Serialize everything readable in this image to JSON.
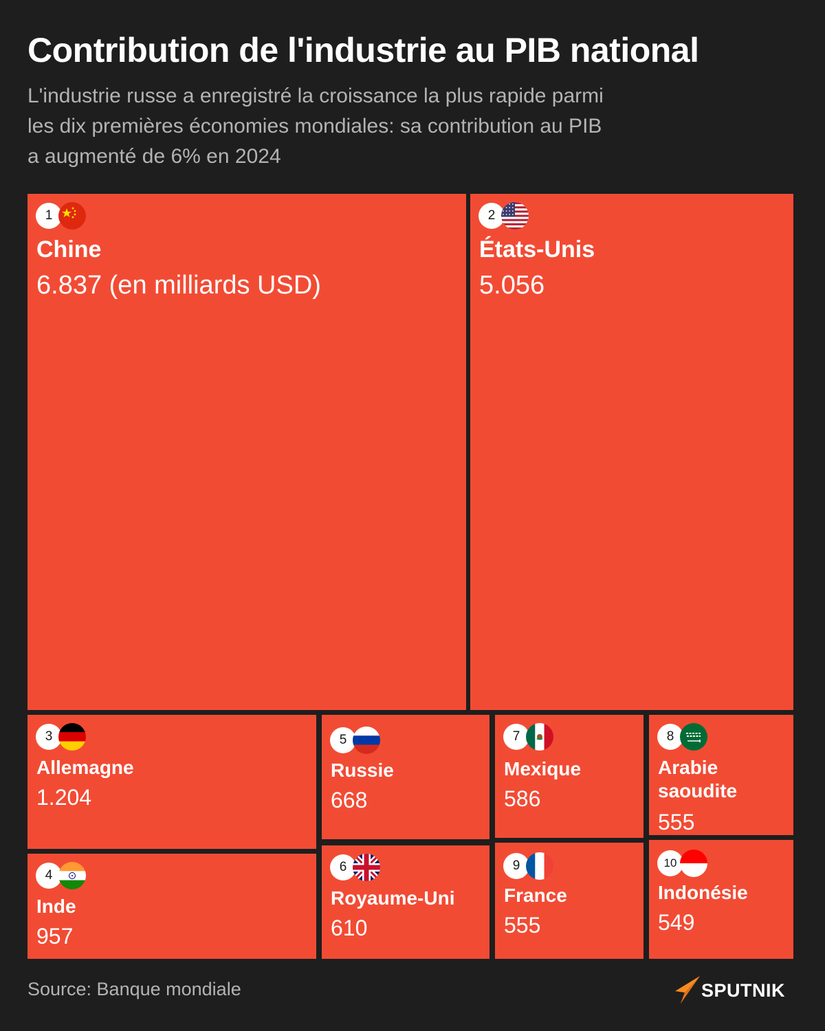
{
  "title": "Contribution de l'industrie au PIB national",
  "subtitle_lines": [
    "L'industrie russe a enregistré la croissance la plus rapide parmi",
    "les dix premières économies mondiales: sa contribution au PIB",
    "a augmenté de 6% en 2024"
  ],
  "source": "Source: Banque mondiale",
  "brand": "SPUTNIK",
  "colors": {
    "background": "#1e1e1e",
    "tile": "#f24b34",
    "text_muted": "#b3b3b3",
    "brand_accent": "#f78b1f"
  },
  "chart_data": {
    "type": "treemap",
    "unit": "(en milliards USD)",
    "items": [
      {
        "rank": "1",
        "name": "Chine",
        "value": 6837,
        "label": "6.837 (en milliards USD)",
        "flag": "china-flag-icon"
      },
      {
        "rank": "2",
        "name": "États-Unis",
        "value": 5056,
        "label": "5.056",
        "flag": "usa-flag-icon"
      },
      {
        "rank": "3",
        "name": "Allemagne",
        "value": 1204,
        "label": "1.204",
        "flag": "germany-flag-icon"
      },
      {
        "rank": "4",
        "name": "Inde",
        "value": 957,
        "label": "957",
        "flag": "india-flag-icon"
      },
      {
        "rank": "5",
        "name": "Russie",
        "value": 668,
        "label": "668",
        "flag": "russia-flag-icon"
      },
      {
        "rank": "6",
        "name": "Royaume-Uni",
        "value": 610,
        "label": "610",
        "flag": "uk-flag-icon"
      },
      {
        "rank": "7",
        "name": "Mexique",
        "value": 586,
        "label": "586",
        "flag": "mexico-flag-icon"
      },
      {
        "rank": "8",
        "name": "Arabie saoudite",
        "name_lines": [
          "Arabie",
          "saoudite"
        ],
        "value": 555,
        "label": "555",
        "flag": "saudi-arabia-flag-icon"
      },
      {
        "rank": "9",
        "name": "France",
        "value": 555,
        "label": "555",
        "flag": "france-flag-icon"
      },
      {
        "rank": "10",
        "name": "Indonésie",
        "value": 549,
        "label": "549",
        "flag": "indonesia-flag-icon"
      }
    ]
  }
}
